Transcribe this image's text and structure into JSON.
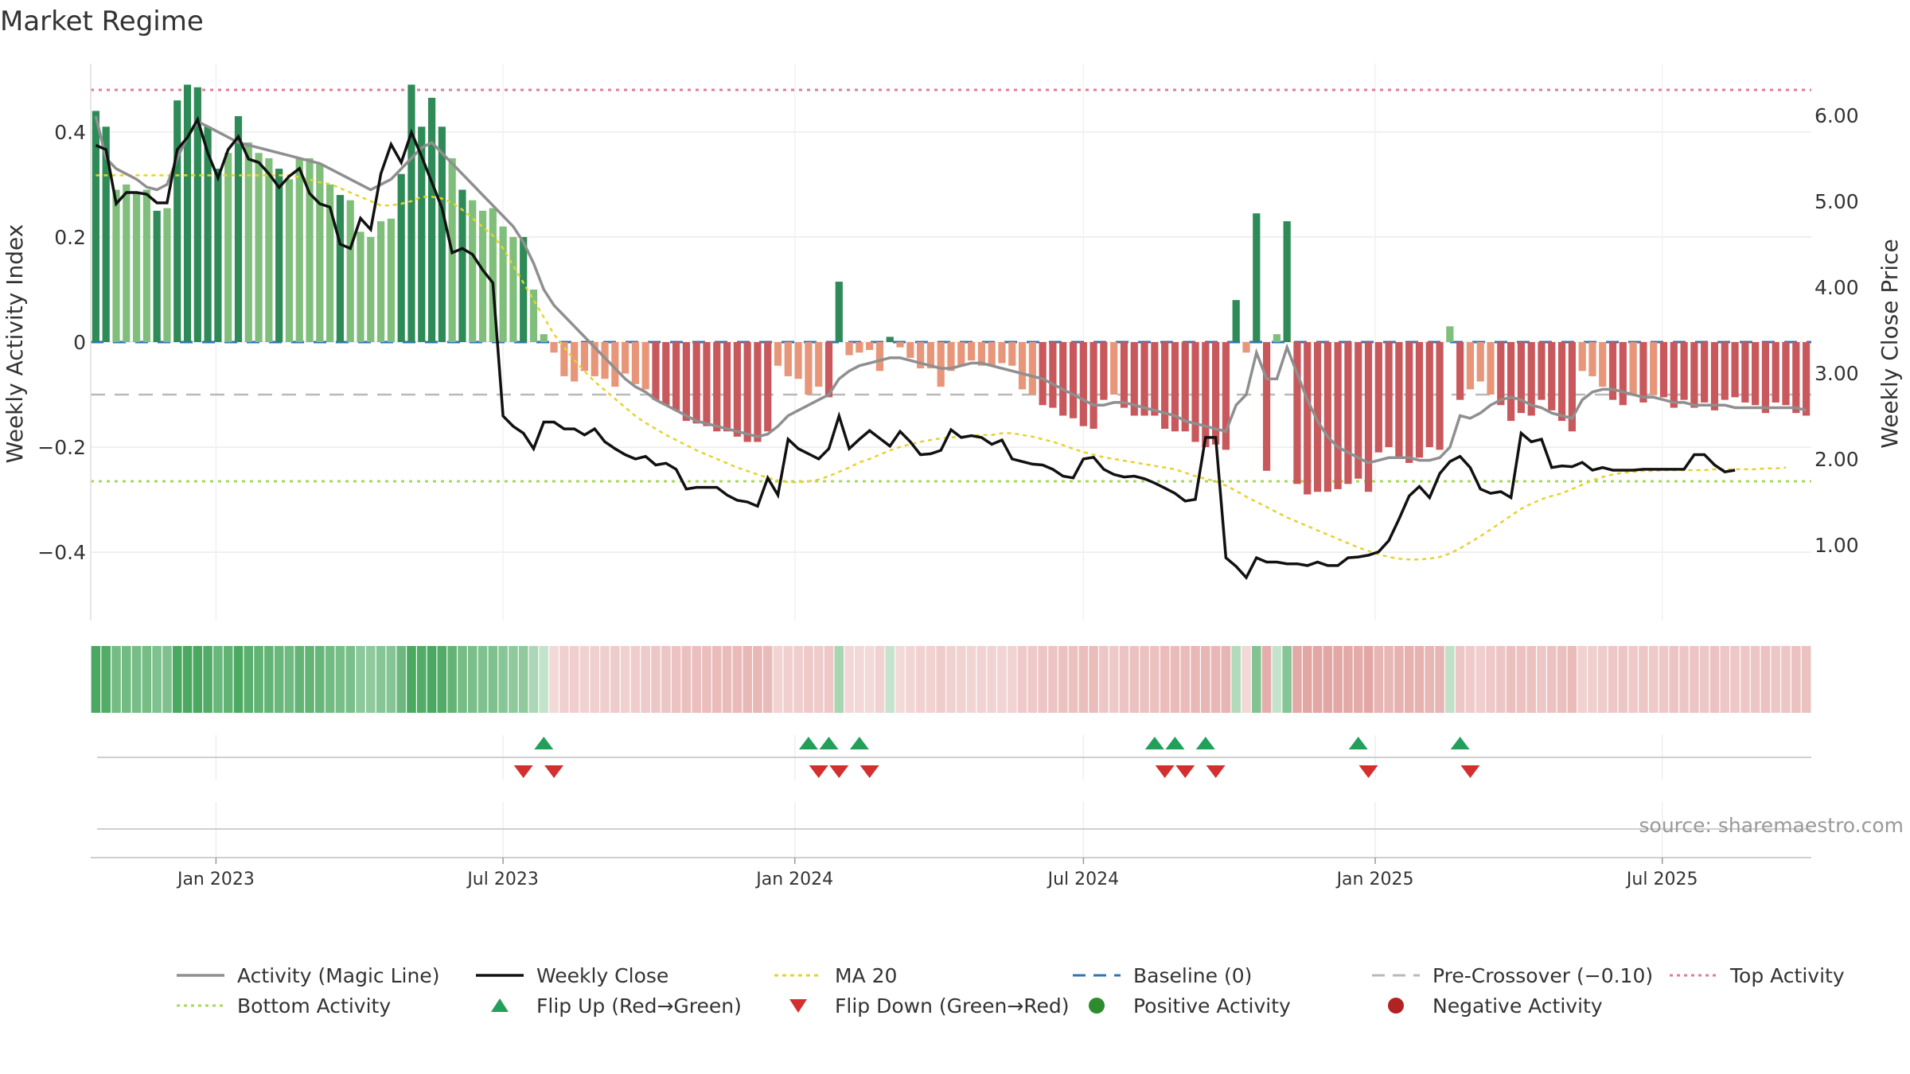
{
  "title": "Market Regime",
  "source_note": "source: sharemaestro.com",
  "colors": {
    "pos_strong": "#2e8b57",
    "pos_light": "#7fbf7b",
    "neg_strong": "#c8585c",
    "neg_light": "#e8967a",
    "close_line": "#111111",
    "magic_line": "#8f8f8f",
    "ma20": "#e6d22e",
    "baseline": "#2f75b5",
    "pre_crossover": "#b9b9b9",
    "top_activity": "#e57a93",
    "bottom_activity": "#a8d85a",
    "flip_up": "#22a05a",
    "flip_down": "#d32f2f",
    "strip_green": "#4aa860",
    "strip_red": "#d98a87"
  },
  "chart_data": {
    "type": "bar",
    "title": "Market Regime",
    "ylabel": "Weekly Activity Index",
    "y2label": "Weekly Close Price",
    "ylim": [
      -0.53,
      0.53
    ],
    "y2lim": [
      0.12,
      6.6
    ],
    "yticks": [
      0.4,
      0.2,
      0,
      -0.2,
      -0.4
    ],
    "ytick_labels": [
      "0.4",
      "0.2",
      "0",
      "−0.2",
      "−0.4"
    ],
    "y2ticks": [
      6.0,
      5.0,
      4.0,
      3.0,
      2.0,
      1.0
    ],
    "y2tick_labels": [
      "6.00",
      "5.00",
      "4.00",
      "3.00",
      "2.00",
      "1.00"
    ],
    "x_start": "2022-10-14",
    "x_end": "2025-10-03",
    "x_ticks": [
      "2023-01-01",
      "2023-07-01",
      "2024-01-01",
      "2024-07-01",
      "2025-01-01",
      "2025-07-01"
    ],
    "x_tick_labels": [
      "Jan 2023",
      "Jul 2023",
      "Jan 2024",
      "Jul 2024",
      "Jan 2025",
      "Jul 2025"
    ],
    "grid": true,
    "legend_position": "bottom",
    "reference_lines": {
      "baseline": 0,
      "pre_crossover": -0.1,
      "top_activity": 0.48,
      "bottom_activity": -0.265
    },
    "activity": [
      0.44,
      0.41,
      0.29,
      0.3,
      0.285,
      0.29,
      0.25,
      0.255,
      0.46,
      0.49,
      0.485,
      0.41,
      0.33,
      0.36,
      0.43,
      0.38,
      0.36,
      0.35,
      0.33,
      0.31,
      0.35,
      0.35,
      0.34,
      0.3,
      0.28,
      0.27,
      0.21,
      0.2,
      0.23,
      0.235,
      0.32,
      0.49,
      0.41,
      0.465,
      0.41,
      0.35,
      0.29,
      0.27,
      0.25,
      0.255,
      0.22,
      0.2,
      0.2,
      0.1,
      0.015,
      -0.02,
      -0.065,
      -0.075,
      -0.055,
      -0.065,
      -0.07,
      -0.085,
      -0.06,
      -0.08,
      -0.09,
      -0.11,
      -0.12,
      -0.13,
      -0.15,
      -0.155,
      -0.16,
      -0.17,
      -0.17,
      -0.18,
      -0.19,
      -0.19,
      -0.17,
      -0.045,
      -0.065,
      -0.07,
      -0.1,
      -0.085,
      -0.105,
      0.115,
      -0.025,
      -0.02,
      -0.015,
      -0.055,
      0.01,
      -0.01,
      -0.03,
      -0.05,
      -0.05,
      -0.085,
      -0.055,
      -0.045,
      -0.035,
      -0.045,
      -0.045,
      -0.04,
      -0.045,
      -0.09,
      -0.1,
      -0.12,
      -0.125,
      -0.14,
      -0.145,
      -0.16,
      -0.165,
      -0.11,
      -0.1,
      -0.125,
      -0.14,
      -0.14,
      -0.14,
      -0.165,
      -0.17,
      -0.17,
      -0.19,
      -0.2,
      -0.195,
      -0.205,
      0.08,
      -0.02,
      0.245,
      -0.245,
      0.015,
      0.23,
      -0.27,
      -0.29,
      -0.285,
      -0.285,
      -0.28,
      -0.27,
      -0.26,
      -0.285,
      -0.21,
      -0.2,
      -0.22,
      -0.23,
      -0.22,
      -0.2,
      -0.205,
      0.03,
      -0.11,
      -0.09,
      -0.075,
      -0.1,
      -0.12,
      -0.15,
      -0.135,
      -0.14,
      -0.11,
      -0.13,
      -0.15,
      -0.17,
      -0.055,
      -0.065,
      -0.085,
      -0.11,
      -0.12,
      -0.1,
      -0.115,
      -0.1,
      -0.105,
      -0.125,
      -0.11,
      -0.125,
      -0.115,
      -0.13,
      -0.11,
      -0.105,
      -0.115,
      -0.12,
      -0.135,
      -0.115,
      -0.12,
      -0.135,
      -0.14
    ],
    "weekly_close": [
      5.65,
      5.6,
      4.97,
      5.1,
      5.1,
      5.08,
      4.98,
      4.98,
      5.6,
      5.74,
      5.95,
      5.56,
      5.27,
      5.6,
      5.75,
      5.49,
      5.45,
      5.32,
      5.16,
      5.29,
      5.38,
      5.09,
      4.97,
      4.93,
      4.5,
      4.45,
      4.8,
      4.67,
      5.32,
      5.66,
      5.45,
      5.8,
      5.52,
      5.22,
      4.92,
      4.4,
      4.45,
      4.38,
      4.2,
      4.05,
      2.5,
      2.38,
      2.3,
      2.12,
      2.43,
      2.43,
      2.35,
      2.35,
      2.28,
      2.35,
      2.2,
      2.12,
      2.05,
      2.0,
      2.03,
      1.93,
      1.95,
      1.88,
      1.65,
      1.67,
      1.67,
      1.67,
      1.58,
      1.52,
      1.5,
      1.45,
      1.78,
      1.58,
      2.23,
      2.12,
      2.06,
      2.0,
      2.12,
      2.5,
      2.12,
      2.23,
      2.33,
      2.24,
      2.15,
      2.32,
      2.2,
      2.05,
      2.06,
      2.1,
      2.34,
      2.25,
      2.27,
      2.25,
      2.17,
      2.22,
      2.0,
      1.97,
      1.94,
      1.93,
      1.88,
      1.8,
      1.78,
      2.0,
      2.02,
      1.88,
      1.82,
      1.79,
      1.8,
      1.77,
      1.72,
      1.66,
      1.6,
      1.51,
      1.53,
      2.25,
      2.25,
      0.85,
      0.75,
      0.62,
      0.85,
      0.8,
      0.8,
      0.78,
      0.78,
      0.76,
      0.8,
      0.76,
      0.76,
      0.85,
      0.86,
      0.88,
      0.92,
      1.05,
      1.3,
      1.57,
      1.68,
      1.55,
      1.83,
      1.97,
      2.03,
      1.9,
      1.65,
      1.6,
      1.62,
      1.55,
      2.3,
      2.2,
      2.23,
      1.9,
      1.92,
      1.91,
      1.96,
      1.87,
      1.9,
      1.87,
      1.87,
      1.87,
      1.88,
      1.88,
      1.88,
      1.88,
      1.88,
      2.05,
      2.05,
      1.93,
      1.85,
      1.87
    ],
    "magic_line": [
      0.43,
      0.35,
      0.33,
      0.32,
      0.31,
      0.295,
      0.29,
      0.3,
      0.35,
      0.39,
      0.42,
      0.41,
      0.4,
      0.39,
      0.38,
      0.375,
      0.37,
      0.365,
      0.36,
      0.355,
      0.35,
      0.345,
      0.34,
      0.33,
      0.32,
      0.31,
      0.3,
      0.29,
      0.3,
      0.31,
      0.33,
      0.35,
      0.37,
      0.38,
      0.36,
      0.34,
      0.32,
      0.3,
      0.28,
      0.26,
      0.24,
      0.22,
      0.19,
      0.15,
      0.1,
      0.07,
      0.05,
      0.03,
      0.01,
      -0.01,
      -0.03,
      -0.05,
      -0.07,
      -0.085,
      -0.095,
      -0.11,
      -0.12,
      -0.13,
      -0.14,
      -0.15,
      -0.155,
      -0.16,
      -0.165,
      -0.17,
      -0.175,
      -0.18,
      -0.175,
      -0.16,
      -0.14,
      -0.13,
      -0.12,
      -0.11,
      -0.1,
      -0.07,
      -0.055,
      -0.045,
      -0.04,
      -0.035,
      -0.03,
      -0.03,
      -0.035,
      -0.04,
      -0.045,
      -0.05,
      -0.05,
      -0.045,
      -0.04,
      -0.04,
      -0.045,
      -0.05,
      -0.055,
      -0.06,
      -0.065,
      -0.07,
      -0.08,
      -0.09,
      -0.1,
      -0.11,
      -0.12,
      -0.12,
      -0.115,
      -0.115,
      -0.12,
      -0.125,
      -0.13,
      -0.135,
      -0.14,
      -0.15,
      -0.155,
      -0.16,
      -0.165,
      -0.17,
      -0.12,
      -0.1,
      -0.02,
      -0.07,
      -0.07,
      -0.01,
      -0.06,
      -0.11,
      -0.15,
      -0.18,
      -0.2,
      -0.21,
      -0.22,
      -0.23,
      -0.225,
      -0.22,
      -0.22,
      -0.22,
      -0.225,
      -0.225,
      -0.22,
      -0.2,
      -0.14,
      -0.145,
      -0.135,
      -0.12,
      -0.11,
      -0.105,
      -0.11,
      -0.12,
      -0.125,
      -0.135,
      -0.14,
      -0.145,
      -0.11,
      -0.095,
      -0.09,
      -0.09,
      -0.095,
      -0.1,
      -0.105,
      -0.105,
      -0.11,
      -0.115,
      -0.115,
      -0.12,
      -0.12,
      -0.12,
      -0.12,
      -0.125,
      -0.125,
      -0.125,
      -0.125,
      -0.125,
      -0.125,
      -0.125,
      -0.13
    ],
    "ma20": [
      5.3,
      5.3,
      5.3,
      5.3,
      5.3,
      5.3,
      5.3,
      5.3,
      5.3,
      5.3,
      5.3,
      5.3,
      5.3,
      5.3,
      5.3,
      5.3,
      5.3,
      5.3,
      5.3,
      5.3,
      5.28,
      5.25,
      5.22,
      5.2,
      5.15,
      5.1,
      5.05,
      5.0,
      4.95,
      4.95,
      4.97,
      5.0,
      5.05,
      5.05,
      5.03,
      4.98,
      4.9,
      4.8,
      4.7,
      4.6,
      4.45,
      4.25,
      4.05,
      3.85,
      3.65,
      3.45,
      3.3,
      3.15,
      3.02,
      2.9,
      2.8,
      2.7,
      2.6,
      2.5,
      2.42,
      2.35,
      2.28,
      2.22,
      2.16,
      2.1,
      2.05,
      2.0,
      1.95,
      1.9,
      1.86,
      1.82,
      1.78,
      1.75,
      1.73,
      1.73,
      1.74,
      1.76,
      1.8,
      1.85,
      1.9,
      1.96,
      2.0,
      2.05,
      2.1,
      2.14,
      2.17,
      2.2,
      2.22,
      2.24,
      2.25,
      2.26,
      2.27,
      2.28,
      2.28,
      2.3,
      2.3,
      2.28,
      2.26,
      2.23,
      2.2,
      2.16,
      2.12,
      2.08,
      2.05,
      2.02,
      2.0,
      1.98,
      1.96,
      1.94,
      1.92,
      1.9,
      1.88,
      1.84,
      1.8,
      1.77,
      1.74,
      1.69,
      1.63,
      1.56,
      1.5,
      1.44,
      1.38,
      1.32,
      1.27,
      1.22,
      1.17,
      1.12,
      1.07,
      1.02,
      0.97,
      0.93,
      0.89,
      0.86,
      0.84,
      0.83,
      0.83,
      0.84,
      0.86,
      0.9,
      0.96,
      1.03,
      1.1,
      1.18,
      1.26,
      1.34,
      1.42,
      1.48,
      1.53,
      1.57,
      1.6,
      1.65,
      1.7,
      1.75,
      1.79,
      1.82,
      1.84,
      1.85,
      1.86,
      1.86,
      1.87,
      1.87,
      1.87,
      1.87,
      1.87,
      1.88,
      1.88,
      1.88,
      1.88,
      1.88,
      1.89,
      1.89,
      1.9
    ],
    "flip_up_weeks": [
      44,
      70,
      72,
      75,
      104,
      106,
      109,
      124,
      134
    ],
    "flip_down_weeks": [
      42,
      45,
      71,
      73,
      76,
      105,
      107,
      110,
      125,
      135
    ]
  },
  "legend": {
    "items": [
      {
        "label": "Activity (Magic Line)",
        "kind": "line-solid-gray"
      },
      {
        "label": "Weekly Close",
        "kind": "line-solid-black"
      },
      {
        "label": "MA 20",
        "kind": "line-dotted-yellow"
      },
      {
        "label": "Baseline (0)",
        "kind": "line-dashed-blue"
      },
      {
        "label": "Pre-Crossover (−0.10)",
        "kind": "line-dashed-gray"
      },
      {
        "label": "Top Activity",
        "kind": "line-dotted-pink"
      },
      {
        "label": "Bottom Activity",
        "kind": "line-dotted-green"
      },
      {
        "label": "Flip Up (Red→Green)",
        "kind": "triangle-up-icon"
      },
      {
        "label": "Flip Down (Green→Red)",
        "kind": "triangle-down-icon"
      },
      {
        "label": "Positive Activity",
        "kind": "circle-green-icon"
      },
      {
        "label": "Negative Activity",
        "kind": "circle-red-icon"
      }
    ]
  }
}
